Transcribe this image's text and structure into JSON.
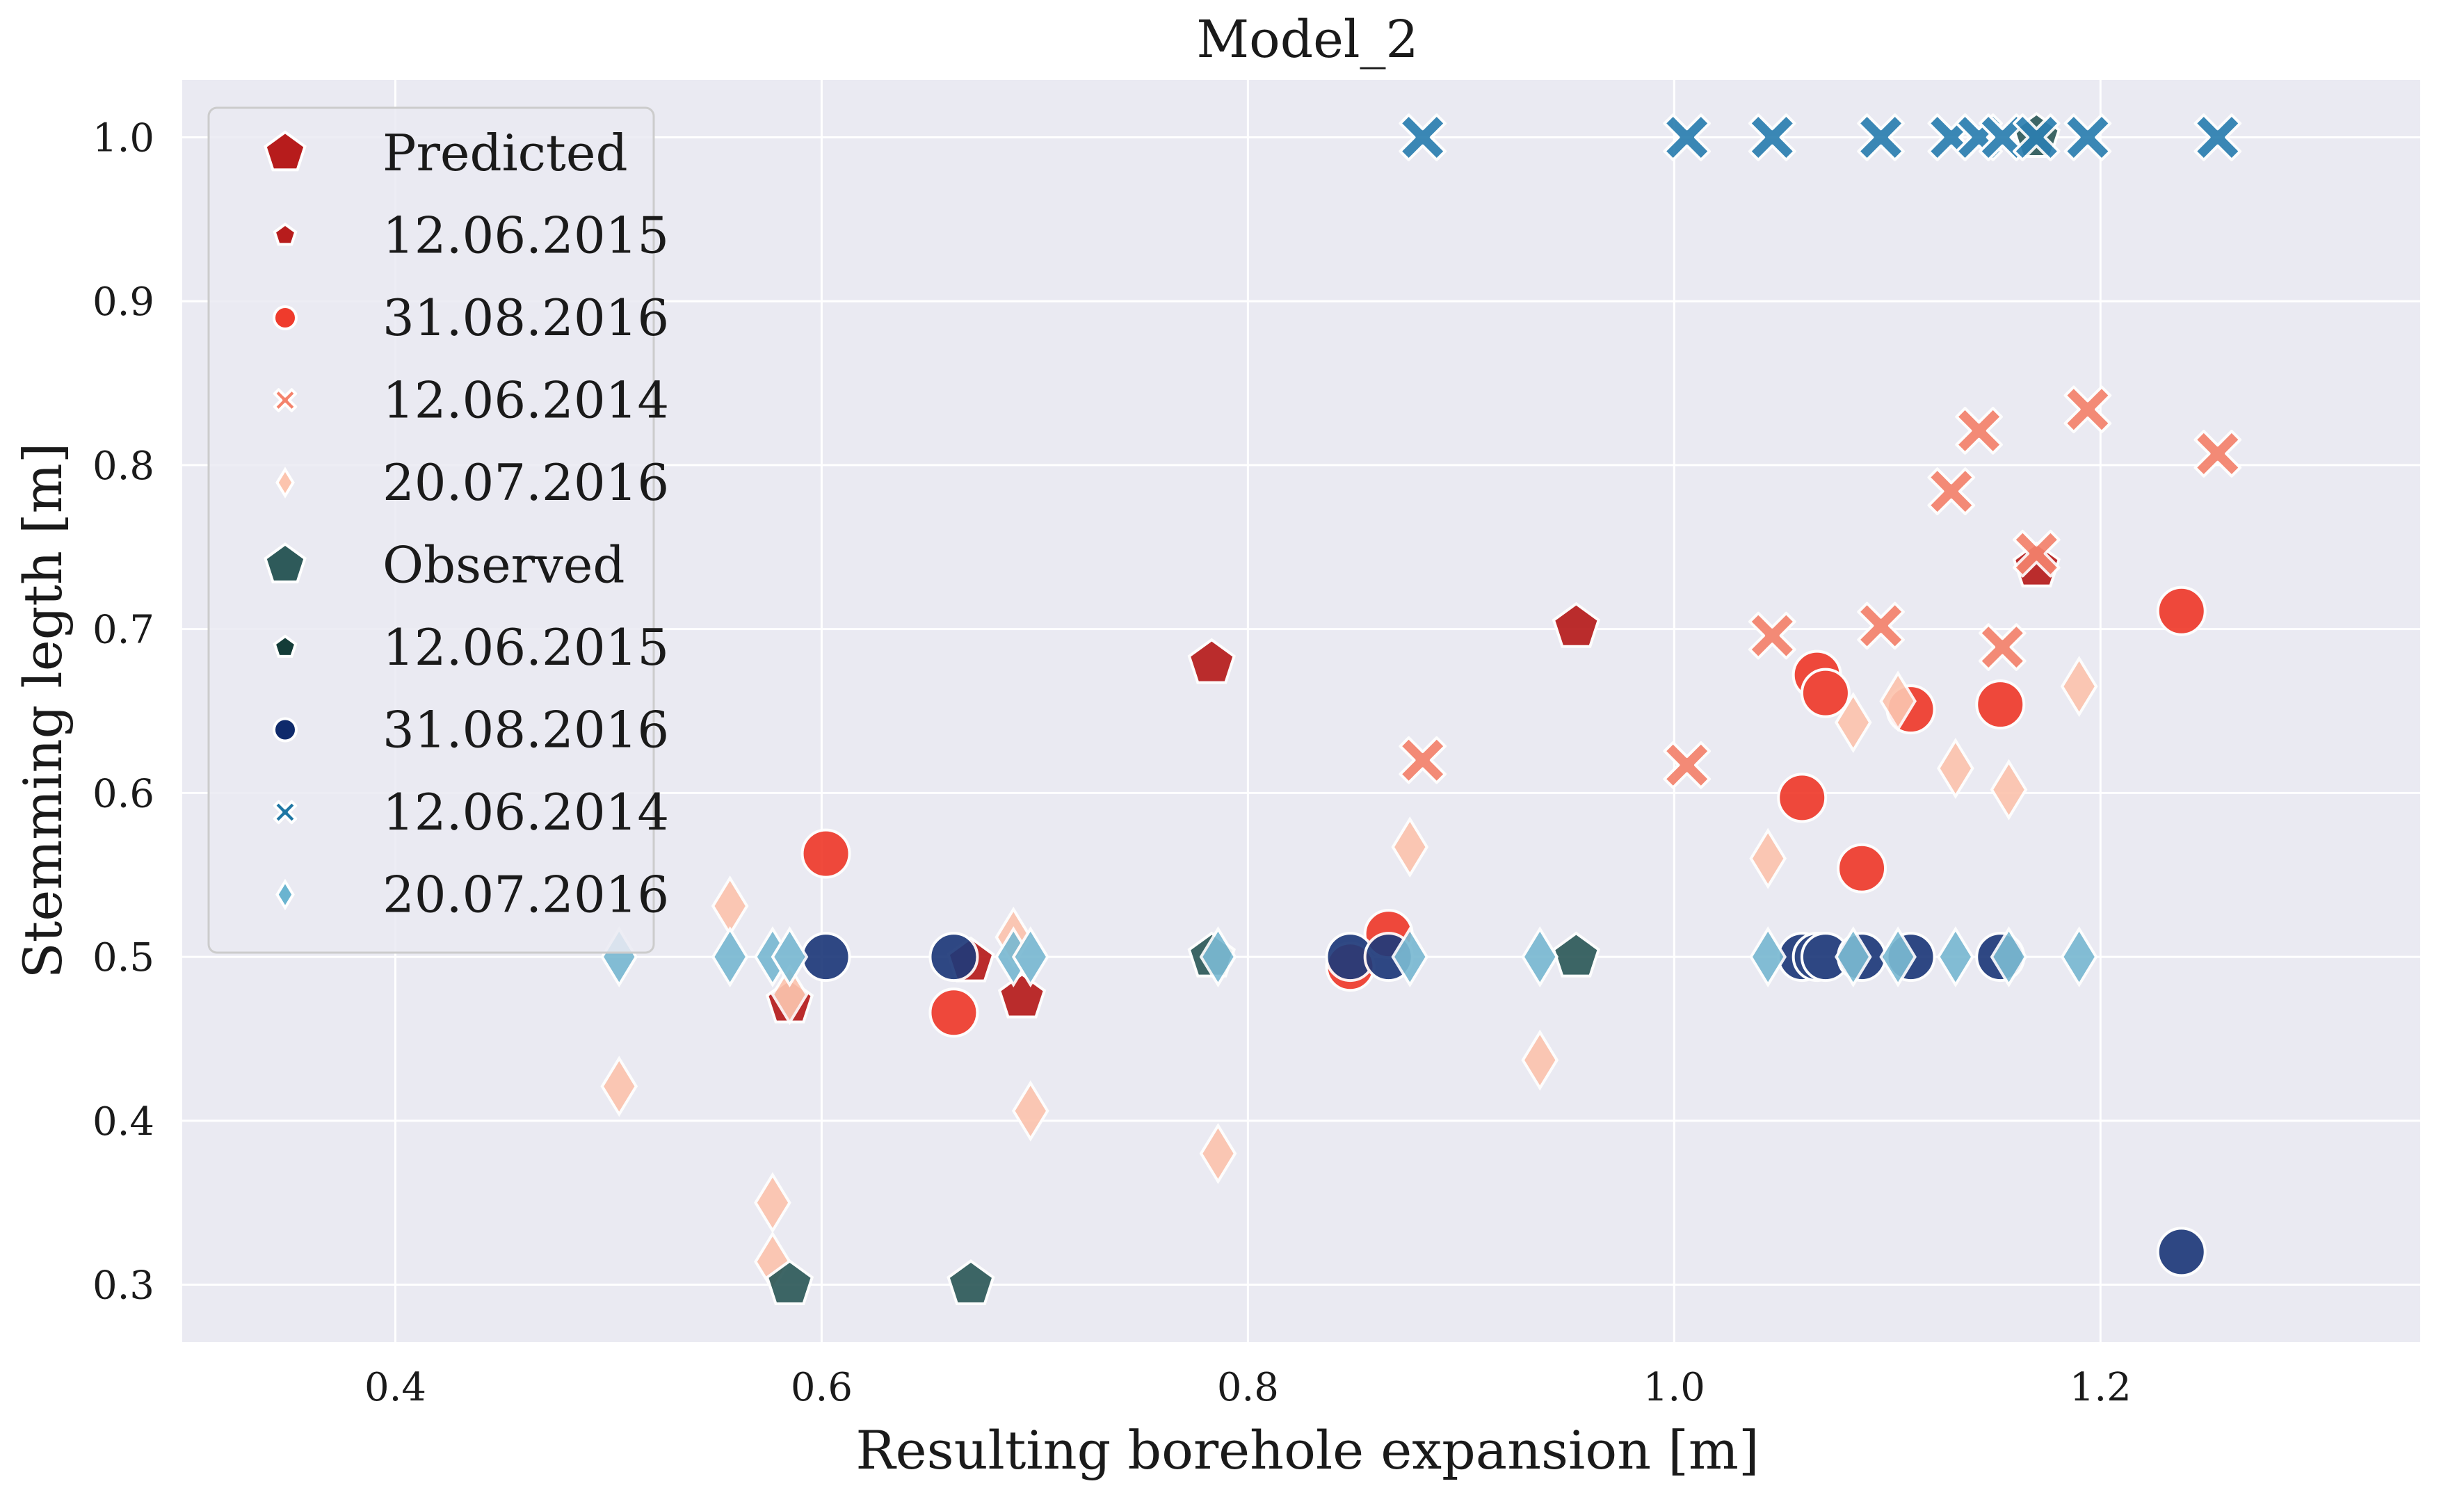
{
  "chart_data": {
    "type": "scatter",
    "title": "Model_2",
    "xlabel": "Resulting borehole expansion [m]",
    "ylabel": "Stemming legth [m]",
    "xlim": [
      0.3,
      1.35
    ],
    "ylim": [
      0.265,
      1.035
    ],
    "xticks": [
      0.4,
      0.6,
      0.8,
      1.0,
      1.2
    ],
    "yticks": [
      0.3,
      0.4,
      0.5,
      0.6,
      0.7,
      0.8,
      0.9,
      1.0
    ],
    "xtick_labels": [
      "0.4",
      "0.6",
      "0.8",
      "1.0",
      "1.2"
    ],
    "ytick_labels": [
      "0.3",
      "0.4",
      "0.5",
      "0.6",
      "0.7",
      "0.8",
      "0.9",
      "1.0"
    ],
    "grid": true,
    "legend_position": "top-left",
    "background": "#eaeaf2",
    "legend": [
      {
        "label": "Predicted",
        "marker": "pentagon",
        "color": "#b71c1c",
        "size": "large"
      },
      {
        "label": "12.06.2015",
        "marker": "pentagon",
        "color": "#b71c1c",
        "size": "small"
      },
      {
        "label": "31.08.2016",
        "marker": "circle",
        "color": "#ef3b2c",
        "size": "small"
      },
      {
        "label": "12.06.2014",
        "marker": "x",
        "color": "#f4826c",
        "size": "small"
      },
      {
        "label": "20.07.2016",
        "marker": "diamond",
        "color": "#fcc4ae",
        "size": "small"
      },
      {
        "label": "Observed",
        "marker": "pentagon",
        "color": "#2e5a5a",
        "size": "large"
      },
      {
        "label": "12.06.2015",
        "marker": "pentagon",
        "color": "#143c38",
        "size": "small"
      },
      {
        "label": "31.08.2016",
        "marker": "circle",
        "color": "#0f2a6b",
        "size": "small"
      },
      {
        "label": "12.06.2014",
        "marker": "x",
        "color": "#1f77a4",
        "size": "small"
      },
      {
        "label": "20.07.2016",
        "marker": "diamond",
        "color": "#6ab4d0",
        "size": "small"
      }
    ],
    "series": [
      {
        "group": "Predicted",
        "date": "12.06.2015",
        "marker": "pentagon",
        "color": "#b71c1c",
        "x": [
          0.585,
          0.67,
          0.694,
          0.783,
          0.954,
          1.17
        ],
        "y": [
          0.472,
          0.497,
          0.475,
          0.679,
          0.701,
          0.738
        ]
      },
      {
        "group": "Predicted",
        "date": "31.08.2016",
        "marker": "circle",
        "color": "#ef3b2c",
        "x": [
          0.602,
          0.662,
          0.848,
          0.866,
          1.06,
          1.067,
          1.071,
          1.088,
          1.111,
          1.153,
          1.238
        ],
        "y": [
          0.563,
          0.466,
          0.494,
          0.514,
          0.597,
          0.672,
          0.661,
          0.554,
          0.651,
          0.654,
          0.711
        ]
      },
      {
        "group": "Predicted",
        "date": "12.06.2014",
        "marker": "x",
        "color": "#f4826c",
        "x": [
          0.882,
          1.006,
          1.046,
          1.097,
          1.13,
          1.143,
          1.154,
          1.17,
          1.194,
          1.255
        ],
        "y": [
          0.62,
          0.617,
          0.696,
          0.702,
          0.784,
          0.821,
          0.689,
          0.746,
          0.834,
          0.807
        ]
      },
      {
        "group": "Predicted",
        "date": "20.07.2016",
        "marker": "diamond",
        "color": "#fcc4ae",
        "x": [
          0.505,
          0.557,
          0.577,
          0.577,
          0.585,
          0.69,
          0.698,
          0.786,
          0.876,
          0.937,
          1.044,
          1.084,
          1.105,
          1.132,
          1.157,
          1.19
        ],
        "y": [
          0.421,
          0.531,
          0.35,
          0.314,
          0.477,
          0.512,
          0.406,
          0.38,
          0.567,
          0.437,
          0.56,
          0.643,
          0.656,
          0.615,
          0.602,
          0.665
        ]
      },
      {
        "group": "Observed",
        "date": "12.06.2015",
        "marker": "pentagon",
        "color": "#2e5a5a",
        "x": [
          0.585,
          0.67,
          0.783,
          0.954,
          1.17
        ],
        "y": [
          0.3,
          0.3,
          0.5,
          0.5,
          1.0
        ]
      },
      {
        "group": "Observed",
        "date": "31.08.2016",
        "marker": "circle",
        "color": "#1f3a7a",
        "x": [
          0.602,
          0.662,
          0.848,
          0.866,
          1.06,
          1.067,
          1.071,
          1.088,
          1.111,
          1.153,
          1.238
        ],
        "y": [
          0.5,
          0.5,
          0.5,
          0.5,
          0.5,
          0.5,
          0.5,
          0.5,
          0.5,
          0.5,
          0.32
        ]
      },
      {
        "group": "Observed",
        "date": "12.06.2014",
        "marker": "x",
        "color": "#2c7fb0",
        "x": [
          0.882,
          1.006,
          1.046,
          1.097,
          1.13,
          1.143,
          1.154,
          1.17,
          1.194,
          1.255
        ],
        "y": [
          1.0,
          1.0,
          1.0,
          1.0,
          1.0,
          1.0,
          1.0,
          1.0,
          1.0,
          1.0
        ]
      },
      {
        "group": "Observed",
        "date": "20.07.2016",
        "marker": "diamond",
        "color": "#7ab9d2",
        "x": [
          0.505,
          0.557,
          0.577,
          0.585,
          0.69,
          0.698,
          0.786,
          0.876,
          0.937,
          1.044,
          1.084,
          1.105,
          1.132,
          1.157,
          1.19
        ],
        "y": [
          0.5,
          0.5,
          0.5,
          0.5,
          0.5,
          0.5,
          0.5,
          0.5,
          0.5,
          0.5,
          0.5,
          0.5,
          0.5,
          0.5,
          0.5
        ]
      }
    ]
  }
}
